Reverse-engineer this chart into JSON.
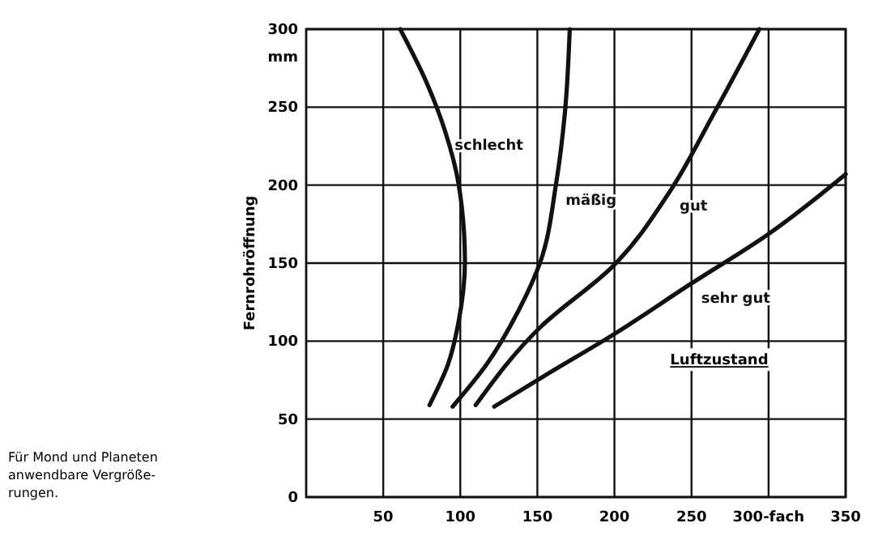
{
  "chart_data": {
    "type": "line",
    "ylabel": "Fernrohröffnung",
    "legend_title": "Luftzustand",
    "xlim": [
      0,
      350
    ],
    "ylim": [
      0,
      300
    ],
    "xticks": [
      50,
      100,
      150,
      200,
      250,
      {
        "value": 300,
        "label": "300-fach"
      },
      350
    ],
    "yticks": [
      0,
      50,
      100,
      150,
      200,
      250,
      300
    ],
    "grid": true,
    "line_style": "solid",
    "marker": "none",
    "annotations": [
      "mm",
      "Für Mond und Planeten\nanwendbare Vergröße-\nrungen."
    ],
    "series": [
      {
        "name": "schlecht",
        "color": "#111111",
        "x": [
          80,
          92,
          99,
          103,
          99,
          90,
          78,
          61
        ],
        "values": [
          59,
          85,
          113,
          151,
          200,
          235,
          266,
          300
        ]
      },
      {
        "name": "mäßig",
        "color": "#111111",
        "x": [
          95,
          117,
          138,
          152,
          162,
          168,
          171
        ],
        "values": [
          58,
          85,
          120,
          151,
          200,
          248,
          300
        ]
      },
      {
        "name": "gut",
        "color": "#111111",
        "x": [
          110,
          152,
          199,
          236,
          264,
          294
        ],
        "values": [
          59,
          109,
          148,
          196,
          245,
          300
        ]
      },
      {
        "name": "sehr gut",
        "color": "#111111",
        "x": [
          122,
          155,
          199,
          250,
          299,
          350
        ],
        "values": [
          58,
          78,
          104,
          137,
          168,
          207
        ]
      }
    ]
  }
}
